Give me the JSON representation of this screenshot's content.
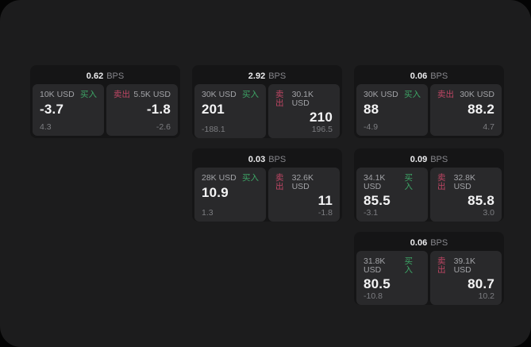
{
  "labels": {
    "buy": "买入",
    "sell": "卖出",
    "bps_suffix": "BPS"
  },
  "colors": {
    "buy_green": "#3da566",
    "sell_red": "#be4664",
    "surface": "#1c1c1d",
    "card_bg": "#151516",
    "pane_bg": "#29292b"
  },
  "cards": [
    {
      "bps": "0.62",
      "buy": {
        "size": "10K USD",
        "price": "-3.7",
        "delta": "4.3"
      },
      "sell": {
        "size": "5.5K USD",
        "price": "-1.8",
        "delta": "-2.6"
      }
    },
    {
      "bps": "2.92",
      "buy": {
        "size": "30K USD",
        "price": "201",
        "delta": "-188.1"
      },
      "sell": {
        "size": "30.1K USD",
        "price": "210",
        "delta": "196.5"
      }
    },
    {
      "bps": "0.06",
      "buy": {
        "size": "30K USD",
        "price": "88",
        "delta": "-4.9"
      },
      "sell": {
        "size": "30K USD",
        "price": "88.2",
        "delta": "4.7"
      }
    },
    {
      "bps": "0.03",
      "buy": {
        "size": "28K USD",
        "price": "10.9",
        "delta": "1.3"
      },
      "sell": {
        "size": "32.6K USD",
        "price": "11",
        "delta": "-1.8"
      }
    },
    {
      "bps": "0.09",
      "buy": {
        "size": "34.1K USD",
        "price": "85.5",
        "delta": "-3.1"
      },
      "sell": {
        "size": "32.8K USD",
        "price": "85.8",
        "delta": "3.0"
      }
    },
    {
      "bps": "0.06",
      "buy": {
        "size": "31.8K USD",
        "price": "80.5",
        "delta": "-10.8"
      },
      "sell": {
        "size": "39.1K USD",
        "price": "80.7",
        "delta": "10.2"
      }
    }
  ]
}
